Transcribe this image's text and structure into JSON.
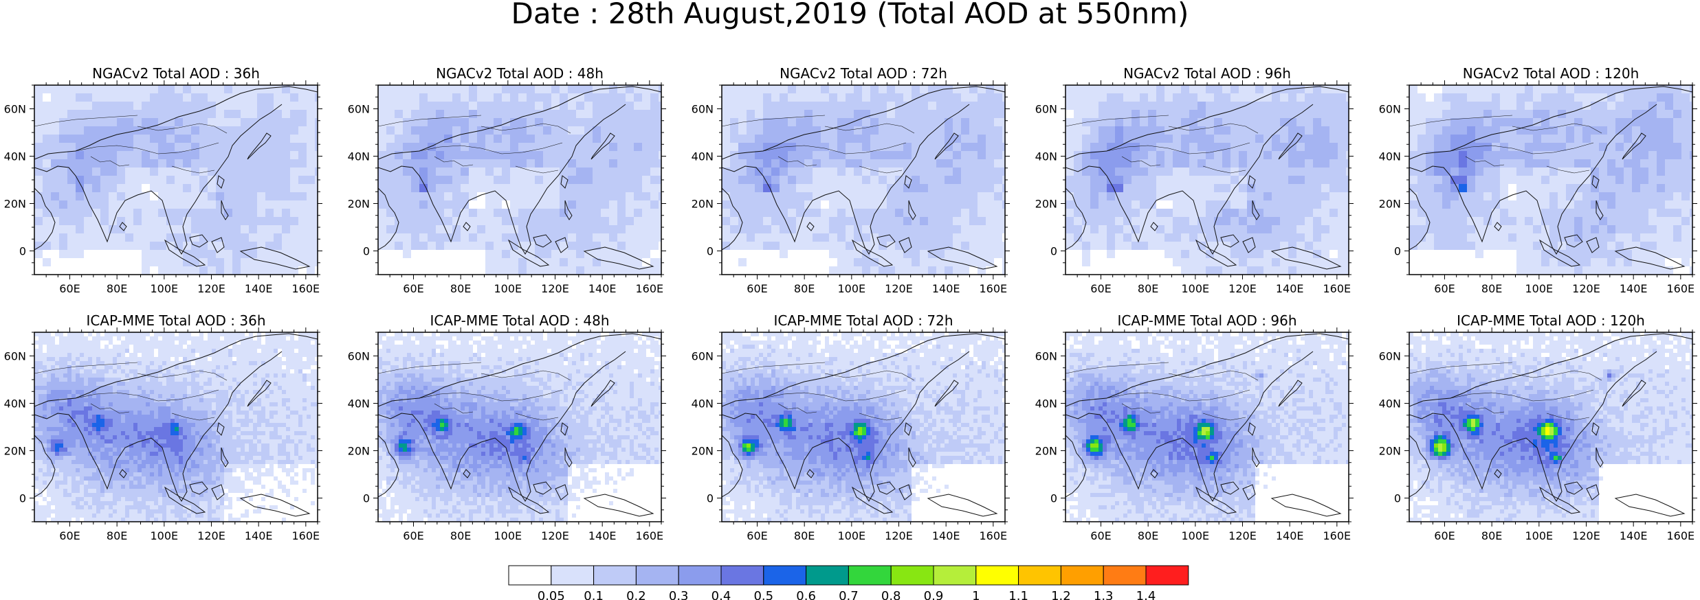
{
  "title": "Date : 28th August,2019 (Total AOD at 550nm)",
  "map": {
    "lon_range": [
      45,
      165
    ],
    "lat_range": [
      -10,
      70
    ],
    "lon_ticks": [
      "60E",
      "80E",
      "100E",
      "120E",
      "140E",
      "160E"
    ],
    "lat_ticks": [
      "60N",
      "40N",
      "20N",
      "0"
    ]
  },
  "panels": [
    {
      "title": "NGACv2 Total AOD : 36h",
      "model": "NGACv2",
      "lead": "36h"
    },
    {
      "title": "NGACv2 Total AOD : 48h",
      "model": "NGACv2",
      "lead": "48h"
    },
    {
      "title": "NGACv2 Total AOD : 72h",
      "model": "NGACv2",
      "lead": "72h"
    },
    {
      "title": "NGACv2 Total AOD : 96h",
      "model": "NGACv2",
      "lead": "96h"
    },
    {
      "title": "NGACv2 Total AOD : 120h",
      "model": "NGACv2",
      "lead": "120h"
    },
    {
      "title": "ICAP-MME Total AOD : 36h",
      "model": "ICAP-MME",
      "lead": "36h"
    },
    {
      "title": "ICAP-MME Total AOD : 48h",
      "model": "ICAP-MME",
      "lead": "48h"
    },
    {
      "title": "ICAP-MME Total AOD : 72h",
      "model": "ICAP-MME",
      "lead": "72h"
    },
    {
      "title": "ICAP-MME Total AOD : 96h",
      "model": "ICAP-MME",
      "lead": "96h"
    },
    {
      "title": "ICAP-MME Total AOD : 120h",
      "model": "ICAP-MME",
      "lead": "120h"
    }
  ],
  "colorbar": {
    "labels": [
      "0.05",
      "0.1",
      "0.2",
      "0.3",
      "0.4",
      "0.5",
      "0.6",
      "0.7",
      "0.8",
      "0.9",
      "1",
      "1.1",
      "1.2",
      "1.3",
      "1.4"
    ],
    "colors": [
      "#ffffff",
      "#d9e1fb",
      "#bfcbf7",
      "#a5b4f2",
      "#8b9ced",
      "#6a76e2",
      "#1b64e8",
      "#009a8c",
      "#33d63c",
      "#88e612",
      "#b5ee3a",
      "#ffff00",
      "#ffc400",
      "#ff9f00",
      "#ff7c14",
      "#ff1e1e"
    ]
  }
}
